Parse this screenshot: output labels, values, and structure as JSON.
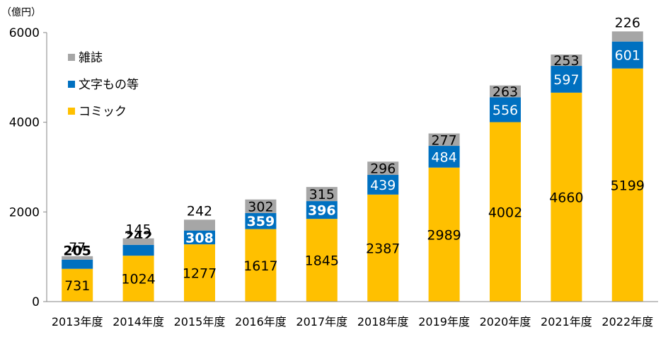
{
  "chart_data": {
    "type": "bar",
    "stacked": true,
    "title": "",
    "ylabel": "（億円）",
    "xlabel": "",
    "ylim": [
      0,
      6000
    ],
    "yticks": [
      "0",
      "2000",
      "4000",
      "6000"
    ],
    "grid": false,
    "legend_position": "top-left",
    "categories": [
      "2013年度",
      "2014年度",
      "2015年度",
      "2016年度",
      "2017年度",
      "2018年度",
      "2019年度",
      "2020年度",
      "2021年度",
      "2022年度"
    ],
    "series": [
      {
        "name": "コミック",
        "color": "#ffc000",
        "label_color": "#000000",
        "values": [
          731,
          1024,
          1277,
          1617,
          1845,
          2387,
          2989,
          4002,
          4660,
          5199
        ]
      },
      {
        "name": "文字もの等",
        "color": "#0070c0",
        "label_color": "#ffffff",
        "values": [
          205,
          242,
          308,
          359,
          396,
          439,
          484,
          556,
          597,
          601
        ]
      },
      {
        "name": "雑誌",
        "color": "#a6a6a6",
        "label_color": "#000000",
        "values": [
          77,
          145,
          242,
          302,
          315,
          296,
          277,
          263,
          253,
          226
        ]
      }
    ],
    "legend_order": [
      "雑誌",
      "文字もの等",
      "コミック"
    ],
    "axis_color": "#868686"
  }
}
